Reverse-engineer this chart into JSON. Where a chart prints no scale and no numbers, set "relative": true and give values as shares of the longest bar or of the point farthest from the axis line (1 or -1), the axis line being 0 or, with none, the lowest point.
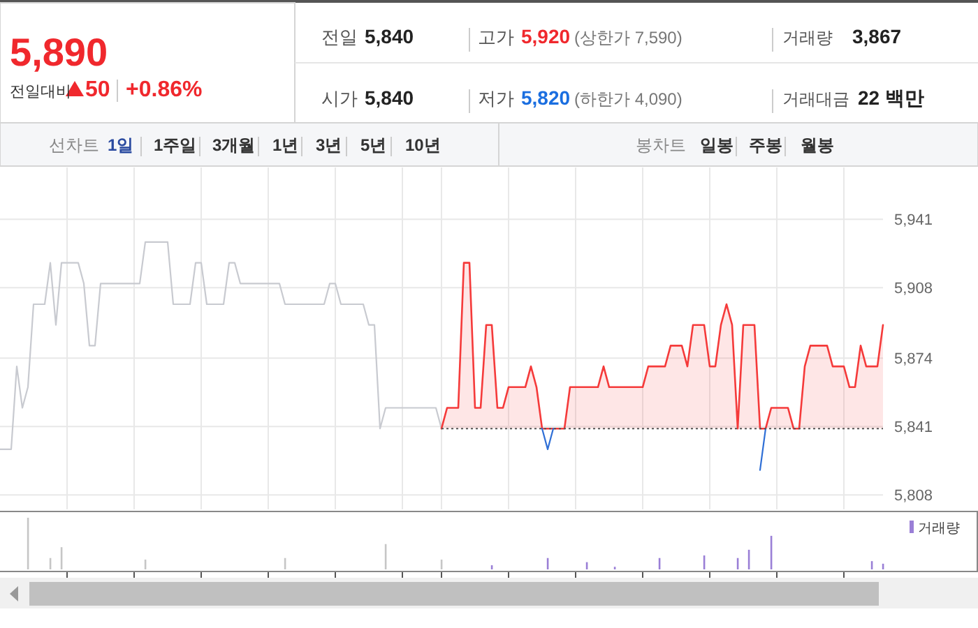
{
  "chart_data": [
    {
      "type": "other",
      "annotations": [
        "5,890",
        "전일대비",
        "50",
        "+0.86%",
        "전일",
        "5,840",
        "고가",
        "5,920",
        "(상한가 7,590)",
        "거래량",
        "3,867",
        "시가",
        "5,840",
        "저가",
        "5,820",
        "(하한가 4,090)",
        "거래대금",
        "22 백만",
        "선차트",
        "1일",
        "1주일",
        "3개월",
        "1년",
        "3년",
        "5년",
        "10년",
        "봉차트",
        "일봉",
        "주봉",
        "월봉"
      ]
    },
    {
      "type": "line",
      "categories": [
        null,
        null,
        null,
        null,
        null,
        null,
        null,
        null,
        null,
        null,
        null,
        null,
        null,
        null,
        null,
        null,
        null,
        null,
        null,
        null,
        null,
        null,
        null,
        null,
        null,
        null,
        null,
        null,
        null,
        null,
        null,
        null,
        null,
        null,
        null,
        null,
        null,
        null,
        null,
        null,
        null,
        null,
        null,
        null,
        null,
        null,
        null,
        null,
        null,
        null,
        null,
        null,
        null,
        null,
        null,
        null,
        null,
        null,
        null,
        null,
        null,
        null,
        null,
        null,
        null,
        null,
        null,
        null,
        null,
        null,
        null,
        null,
        null,
        null,
        null,
        null,
        null,
        null,
        null,
        null,
        null,
        null,
        null,
        null,
        null,
        null,
        null,
        null,
        null,
        null,
        null,
        null,
        null,
        null,
        null,
        null,
        null,
        null,
        null,
        null,
        null,
        null,
        null,
        null,
        null,
        null,
        null,
        null,
        null,
        null,
        null,
        null,
        null,
        null,
        null,
        null,
        null,
        null,
        null,
        null,
        null,
        null,
        null,
        null,
        null,
        null,
        null,
        null,
        null,
        null,
        null,
        null,
        null,
        null,
        null,
        null,
        null,
        null,
        null,
        null,
        null,
        null,
        null,
        null,
        null,
        null,
        null,
        null,
        null,
        null,
        null,
        null,
        null,
        null,
        null,
        null,
        null,
        null,
        null
      ],
      "ylim": [
        5801,
        5966
      ],
      "yticks": [
        {
          "value": 5808,
          "label": "5,808"
        },
        {
          "value": 5841,
          "label": "5,841"
        },
        {
          "value": 5874,
          "label": "5,874"
        },
        {
          "value": 5908,
          "label": "5,908"
        },
        {
          "value": 5941,
          "label": "5,941"
        }
      ],
      "grid": true,
      "ref_lines": [
        {
          "axis": "y",
          "value": 5840,
          "color": "#555555",
          "line_style": "dotted"
        }
      ],
      "series": [
        {
          "color": "#c8cad0",
          "values": [
            5830,
            5830,
            5830,
            5870,
            5850,
            5860,
            5900,
            5900,
            5900,
            5920,
            5890,
            5920,
            5920,
            5920,
            5920,
            5910,
            5880,
            5880,
            5910,
            5910,
            5910,
            5910,
            5910,
            5910,
            5910,
            5910,
            5930,
            5930,
            5930,
            5930,
            5930,
            5900,
            5900,
            5900,
            5900,
            5920,
            5920,
            5900,
            5900,
            5900,
            5900,
            5920,
            5920,
            5910,
            5910,
            5910,
            5910,
            5910,
            5910,
            5910,
            5910,
            5900,
            5900,
            5900,
            5900,
            5900,
            5900,
            5900,
            5900,
            5910,
            5910,
            5900,
            5900,
            5900,
            5900,
            5900,
            5890,
            5890,
            5840,
            5850,
            5850,
            5850,
            5850,
            5850,
            5850,
            5850,
            5850,
            5850,
            5850,
            5840,
            null,
            null,
            null,
            null,
            null,
            null,
            null,
            null,
            null,
            null,
            null,
            null,
            null,
            null,
            null,
            null,
            null,
            null,
            null,
            null,
            null,
            null,
            null,
            null,
            null,
            null,
            null,
            null,
            null,
            null,
            null,
            null,
            null,
            null,
            null,
            null,
            null,
            null,
            null,
            null,
            null,
            null,
            null,
            null,
            null,
            null,
            null,
            null,
            null,
            null,
            null,
            null,
            null,
            null,
            null,
            null,
            null,
            null,
            null,
            null,
            null,
            null,
            null,
            null,
            null,
            null,
            null,
            null,
            null,
            null,
            null,
            null,
            null,
            null,
            null,
            null,
            null,
            null,
            null
          ]
        },
        {
          "type": "area",
          "color": "#f53a3a",
          "values": [
            null,
            null,
            null,
            null,
            null,
            null,
            null,
            null,
            null,
            null,
            null,
            null,
            null,
            null,
            null,
            null,
            null,
            null,
            null,
            null,
            null,
            null,
            null,
            null,
            null,
            null,
            null,
            null,
            null,
            null,
            null,
            null,
            null,
            null,
            null,
            null,
            null,
            null,
            null,
            null,
            null,
            null,
            null,
            null,
            null,
            null,
            null,
            null,
            null,
            null,
            null,
            null,
            null,
            null,
            null,
            null,
            null,
            null,
            null,
            null,
            null,
            null,
            null,
            null,
            null,
            null,
            null,
            null,
            null,
            null,
            null,
            null,
            null,
            null,
            null,
            null,
            null,
            null,
            null,
            5840,
            5850,
            5850,
            5850,
            5920,
            5920,
            5850,
            5850,
            5890,
            5890,
            5850,
            5850,
            5860,
            5860,
            5860,
            5860,
            5870,
            5860,
            5840,
            5840,
            5840,
            5840,
            5840,
            5860,
            5860,
            5860,
            5860,
            5860,
            5860,
            5870,
            5860,
            5860,
            5860,
            5860,
            5860,
            5860,
            5860,
            5870,
            5870,
            5870,
            5870,
            5880,
            5880,
            5880,
            5870,
            5890,
            5890,
            5890,
            5870,
            5870,
            5890,
            5900,
            5890,
            5840,
            5890,
            5890,
            5890,
            5840,
            5840,
            5850,
            5850,
            5850,
            5850,
            5840,
            5840,
            5870,
            5880,
            5880,
            5880,
            5880,
            5870,
            5870,
            5870,
            5860,
            5860,
            5880,
            5870,
            5870,
            5870,
            5890
          ]
        },
        {
          "color": "#2f6fd6",
          "values": [
            null,
            null,
            null,
            null,
            null,
            null,
            null,
            null,
            null,
            null,
            null,
            null,
            null,
            null,
            null,
            null,
            null,
            null,
            null,
            null,
            null,
            null,
            null,
            null,
            null,
            null,
            null,
            null,
            null,
            null,
            null,
            null,
            null,
            null,
            null,
            null,
            null,
            null,
            null,
            null,
            null,
            null,
            null,
            null,
            null,
            null,
            null,
            null,
            null,
            null,
            null,
            null,
            null,
            null,
            null,
            null,
            null,
            null,
            null,
            null,
            null,
            null,
            null,
            null,
            null,
            null,
            null,
            null,
            null,
            null,
            null,
            null,
            null,
            null,
            null,
            null,
            null,
            null,
            null,
            null,
            null,
            null,
            null,
            null,
            null,
            null,
            null,
            null,
            null,
            null,
            null,
            null,
            null,
            null,
            null,
            null,
            null,
            5840,
            5830,
            5840,
            null,
            null,
            null,
            null,
            null,
            null,
            null,
            null,
            null,
            null,
            null,
            null,
            null,
            null,
            null,
            null,
            null,
            null,
            null,
            null,
            null,
            null,
            null,
            null,
            null,
            null,
            null,
            null,
            null,
            null,
            null,
            null,
            null,
            null,
            null,
            null,
            5820,
            5840,
            null,
            null,
            null,
            null,
            null,
            null,
            null,
            null,
            null,
            null,
            null,
            null,
            null,
            null,
            null,
            null,
            null,
            null,
            null,
            null,
            null
          ]
        }
      ]
    },
    {
      "type": "bar",
      "relative": true,
      "legend": "top right",
      "categories": [
        null,
        null,
        null,
        null,
        null,
        null,
        null,
        null,
        null,
        null,
        null,
        null,
        null,
        null,
        null,
        null,
        null,
        null,
        null,
        null,
        null,
        null,
        null,
        null,
        null,
        null,
        null,
        null,
        null,
        null,
        null,
        null,
        null,
        null,
        null,
        null,
        null,
        null,
        null,
        null,
        null,
        null,
        null,
        null,
        null,
        null,
        null,
        null,
        null,
        null,
        null,
        null,
        null,
        null,
        null,
        null,
        null,
        null,
        null,
        null,
        null,
        null,
        null,
        null,
        null,
        null,
        null,
        null,
        null,
        null,
        null,
        null,
        null,
        null,
        null,
        null,
        null,
        null,
        null,
        null,
        null,
        null,
        null,
        null,
        null,
        null,
        null,
        null,
        null,
        null,
        null,
        null,
        null,
        null,
        null,
        null,
        null,
        null,
        null,
        null,
        null,
        null,
        null,
        null,
        null,
        null,
        null,
        null,
        null,
        null,
        null,
        null,
        null,
        null,
        null,
        null,
        null,
        null,
        null,
        null,
        null,
        null,
        null,
        null,
        null,
        null,
        null,
        null,
        null,
        null,
        null,
        null,
        null,
        null,
        null,
        null,
        null,
        null,
        null,
        null,
        null,
        null,
        null,
        null,
        null,
        null,
        null,
        null,
        null,
        null,
        null,
        null,
        null,
        null,
        null,
        null,
        null,
        null,
        null
      ],
      "series": [
        {
          "color": "#c6c6c6",
          "values": [
            null,
            null,
            null,
            null,
            null,
            1,
            null,
            null,
            null,
            0.22,
            null,
            0.43,
            null,
            null,
            null,
            null,
            null,
            null,
            null,
            null,
            null,
            null,
            null,
            null,
            null,
            null,
            0.19,
            null,
            null,
            null,
            null,
            null,
            null,
            null,
            null,
            null,
            null,
            null,
            null,
            null,
            null,
            null,
            null,
            null,
            null,
            null,
            null,
            null,
            null,
            null,
            null,
            0.22,
            null,
            null,
            null,
            null,
            null,
            null,
            null,
            null,
            null,
            null,
            null,
            null,
            null,
            null,
            null,
            null,
            null,
            0.49,
            null,
            null,
            null,
            null,
            null,
            null,
            null,
            null,
            null,
            0.19,
            null,
            null,
            null,
            null,
            null,
            null,
            null,
            null,
            null,
            null,
            null,
            null,
            null,
            null,
            null,
            null,
            null,
            null,
            null,
            null,
            null,
            null,
            null,
            null,
            null,
            null,
            null,
            null,
            null,
            null,
            null,
            null,
            null,
            null,
            null,
            null,
            null,
            null,
            null,
            null,
            null,
            null,
            null,
            null,
            null,
            null,
            null,
            null,
            null,
            null,
            null,
            null,
            null,
            null,
            null,
            null,
            null,
            null,
            null,
            null,
            null,
            null,
            null,
            null,
            null,
            null,
            null,
            null,
            null,
            null,
            null,
            null,
            null,
            null,
            null,
            null,
            null,
            null,
            null
          ]
        },
        {
          "name": "거래량",
          "color": "#9a7fd6",
          "values": [
            null,
            null,
            null,
            null,
            null,
            null,
            null,
            null,
            null,
            null,
            null,
            null,
            null,
            null,
            null,
            null,
            null,
            null,
            null,
            null,
            null,
            null,
            null,
            null,
            null,
            null,
            null,
            null,
            null,
            null,
            null,
            null,
            null,
            null,
            null,
            null,
            null,
            null,
            null,
            null,
            null,
            null,
            null,
            null,
            null,
            null,
            null,
            null,
            null,
            null,
            null,
            null,
            null,
            null,
            null,
            null,
            null,
            null,
            null,
            null,
            null,
            null,
            null,
            null,
            null,
            null,
            null,
            null,
            null,
            null,
            null,
            null,
            null,
            null,
            null,
            null,
            null,
            null,
            null,
            null,
            null,
            null,
            null,
            null,
            null,
            null,
            null,
            null,
            0.08,
            null,
            null,
            null,
            null,
            null,
            null,
            null,
            null,
            null,
            0.22,
            null,
            null,
            null,
            null,
            null,
            null,
            0.14,
            null,
            null,
            null,
            null,
            0.05,
            null,
            null,
            null,
            null,
            null,
            null,
            null,
            0.22,
            null,
            null,
            null,
            null,
            null,
            null,
            null,
            0.27,
            null,
            null,
            null,
            null,
            null,
            0.22,
            null,
            0.38,
            null,
            null,
            null,
            0.65,
            null,
            null,
            null,
            null,
            null,
            null,
            null,
            null,
            null,
            null,
            null,
            null,
            null,
            null,
            null,
            null,
            null,
            0.16,
            null,
            0.11
          ]
        }
      ]
    }
  ]
}
